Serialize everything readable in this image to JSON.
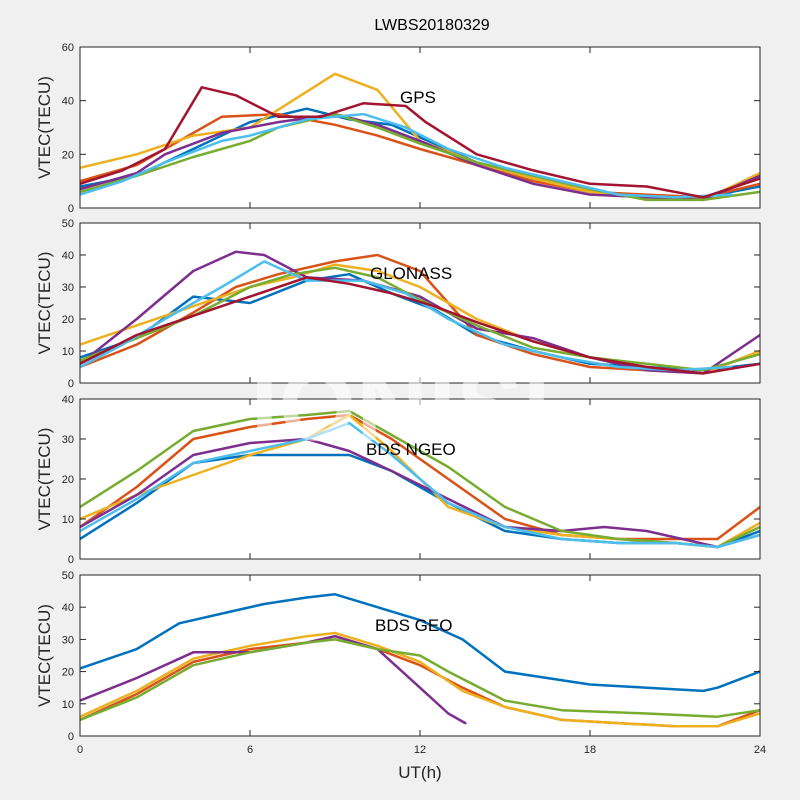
{
  "figure": {
    "title": "LWBS20180329",
    "xlabel": "UT(h)",
    "watermark": "IONISE",
    "background": "#f0f0f0",
    "plot_background": "#ffffff"
  },
  "chart_data": [
    {
      "type": "line",
      "annotation": "GPS",
      "ylabel": "VTEC(TECU)",
      "xlim": [
        0,
        24
      ],
      "ylim": [
        0,
        60
      ],
      "xticks": [
        0,
        6,
        12,
        18,
        24
      ],
      "yticks": [
        0,
        20,
        40,
        60
      ],
      "show_xticklabels": false,
      "series": [
        {
          "color": "#0072bd",
          "x": [
            0,
            2,
            4,
            6,
            8,
            9.5,
            11,
            12.5,
            14,
            16,
            18,
            20,
            22,
            24
          ],
          "y": [
            8,
            12,
            22,
            32,
            37,
            33,
            31,
            24,
            17,
            11,
            6,
            4,
            4,
            8
          ]
        },
        {
          "color": "#d95319",
          "x": [
            0,
            2,
            3.5,
            5,
            7,
            9,
            10.5,
            12,
            14,
            16,
            18,
            20,
            22,
            24
          ],
          "y": [
            10,
            16,
            25,
            34,
            35,
            31,
            27,
            22,
            16,
            10,
            6,
            5,
            4,
            9
          ]
        },
        {
          "color": "#edb120",
          "x": [
            0,
            2,
            4,
            6,
            7.5,
            9,
            10.5,
            12,
            14,
            16,
            18,
            20,
            22,
            24
          ],
          "y": [
            15,
            20,
            27,
            30,
            40,
            50,
            44,
            25,
            17,
            11,
            6,
            4,
            3,
            13
          ]
        },
        {
          "color": "#7e2f8e",
          "x": [
            0,
            2,
            3,
            5,
            7,
            9,
            10.5,
            12,
            14,
            16,
            18,
            20,
            22,
            24
          ],
          "y": [
            7,
            13,
            20,
            28,
            32,
            35,
            31,
            25,
            16,
            9,
            5,
            4,
            3,
            12
          ]
        },
        {
          "color": "#77ac30",
          "x": [
            0,
            2,
            4,
            6,
            7,
            9,
            10.5,
            12,
            14,
            16,
            18,
            20,
            22,
            24
          ],
          "y": [
            6,
            12,
            19,
            25,
            30,
            35,
            30,
            24,
            17,
            12,
            7,
            3,
            3,
            6
          ]
        },
        {
          "color": "#4dbeee",
          "x": [
            0,
            1.5,
            3,
            5,
            6,
            8,
            10,
            11.5,
            13,
            15,
            17,
            19,
            21,
            23
          ],
          "y": [
            5,
            10,
            17,
            25,
            27,
            33,
            35,
            30,
            22,
            15,
            10,
            5,
            4,
            5
          ]
        },
        {
          "color": "#a2142f",
          "x": [
            0,
            1.5,
            3,
            4.3,
            5.5,
            7,
            8.5,
            10,
            11.5,
            12.2,
            14,
            16,
            18,
            20,
            22,
            24
          ],
          "y": [
            9,
            14,
            22,
            45,
            42,
            34,
            34,
            39,
            38,
            32,
            20,
            14,
            9,
            8,
            4,
            11
          ]
        }
      ]
    },
    {
      "type": "line",
      "annotation": "GLONASS",
      "ylabel": "VTEC(TECU)",
      "xlim": [
        0,
        24
      ],
      "ylim": [
        0,
        50
      ],
      "xticks": [
        0,
        6,
        12,
        18,
        24
      ],
      "yticks": [
        0,
        10,
        20,
        30,
        40,
        50
      ],
      "show_xticklabels": false,
      "series": [
        {
          "color": "#0072bd",
          "x": [
            0,
            2,
            4,
            6,
            8,
            9.5,
            11,
            12.5,
            14,
            16,
            18,
            20,
            22,
            24
          ],
          "y": [
            8,
            14,
            27,
            25,
            32,
            34,
            28,
            23,
            15,
            10,
            6,
            5,
            4,
            6
          ]
        },
        {
          "color": "#d95319",
          "x": [
            0,
            2,
            4,
            5.5,
            7,
            9,
            10.5,
            12,
            14,
            16,
            18,
            20,
            22,
            24
          ],
          "y": [
            5,
            12,
            22,
            30,
            34,
            38,
            40,
            35,
            15,
            9,
            5,
            4,
            3,
            10
          ]
        },
        {
          "color": "#edb120",
          "x": [
            0,
            2,
            4,
            6,
            7.5,
            9,
            10.5,
            12,
            14,
            16,
            18,
            20,
            22,
            24
          ],
          "y": [
            12,
            18,
            24,
            30,
            33,
            37,
            35,
            30,
            20,
            13,
            8,
            5,
            3,
            10
          ]
        },
        {
          "color": "#7e2f8e",
          "x": [
            0,
            2,
            4,
            5.5,
            6.5,
            8,
            10,
            12,
            14,
            16,
            18,
            20,
            22,
            24
          ],
          "y": [
            6,
            20,
            35,
            41,
            40,
            33,
            32,
            27,
            17,
            14,
            8,
            4,
            3,
            15
          ]
        },
        {
          "color": "#77ac30",
          "x": [
            0,
            2,
            4,
            6,
            7.5,
            9,
            10.5,
            12,
            14,
            16,
            18,
            20,
            22,
            24
          ],
          "y": [
            7,
            14,
            21,
            30,
            34,
            36,
            33,
            26,
            18,
            11,
            8,
            6,
            4,
            9
          ]
        },
        {
          "color": "#4dbeee",
          "x": [
            0,
            1.5,
            3,
            5,
            6.5,
            8,
            10,
            11.5,
            13,
            15,
            17,
            19,
            21,
            23
          ],
          "y": [
            5,
            12,
            20,
            30,
            38,
            32,
            32,
            28,
            20,
            12,
            8,
            5,
            4,
            5
          ]
        },
        {
          "color": "#a2142f",
          "x": [
            0,
            2,
            4,
            6,
            8,
            9.5,
            11,
            12.5,
            14,
            16,
            18,
            20,
            22,
            24
          ],
          "y": [
            6,
            15,
            21,
            27,
            33,
            31,
            28,
            24,
            19,
            13,
            8,
            5,
            3,
            6
          ]
        }
      ]
    },
    {
      "type": "line",
      "annotation": "BDS NGEO",
      "ylabel": "VTEC(TECU)",
      "xlim": [
        0,
        24
      ],
      "ylim": [
        0,
        40
      ],
      "xticks": [
        0,
        6,
        12,
        18,
        24
      ],
      "yticks": [
        0,
        10,
        20,
        30,
        40
      ],
      "show_xticklabels": false,
      "series": [
        {
          "color": "#0072bd",
          "x": [
            0,
            2,
            4,
            6,
            8,
            9.5,
            11,
            13,
            15,
            17,
            19,
            21,
            22.5,
            24
          ],
          "y": [
            5,
            14,
            24,
            26,
            26,
            26,
            22,
            14,
            7,
            5,
            4,
            4,
            3,
            7
          ]
        },
        {
          "color": "#d95319",
          "x": [
            0,
            2,
            4,
            6,
            8,
            9.5,
            11,
            13,
            15,
            17,
            19,
            21,
            22.5,
            24
          ],
          "y": [
            8,
            18,
            30,
            33,
            35,
            36,
            30,
            20,
            10,
            6,
            5,
            5,
            5,
            13
          ]
        },
        {
          "color": "#edb120",
          "x": [
            0,
            2,
            4,
            6,
            8,
            9.5,
            11,
            13,
            15,
            17,
            19,
            21,
            22.5,
            24
          ],
          "y": [
            10,
            16,
            21,
            26,
            30,
            36,
            27,
            13,
            8,
            6,
            5,
            4,
            3,
            9
          ]
        },
        {
          "color": "#7e2f8e",
          "x": [
            0,
            2,
            4,
            6,
            8,
            9.5,
            11,
            13,
            15,
            17,
            18.5,
            20,
            22.5,
            24
          ],
          "y": [
            8,
            16,
            26,
            29,
            30,
            27,
            22,
            15,
            8,
            7,
            8,
            7,
            3,
            6
          ]
        },
        {
          "color": "#77ac30",
          "x": [
            0,
            2,
            4,
            6,
            8,
            9.5,
            11,
            13,
            15,
            17,
            19,
            21,
            22.5,
            24
          ],
          "y": [
            13,
            22,
            32,
            35,
            36,
            37,
            31,
            23,
            13,
            7,
            5,
            4,
            3,
            8
          ]
        },
        {
          "color": "#4dbeee",
          "x": [
            0,
            2,
            4,
            6,
            8,
            9.5,
            11,
            13,
            15,
            17,
            19,
            21,
            22.5,
            24
          ],
          "y": [
            7,
            15,
            24,
            27,
            30,
            34,
            26,
            14,
            8,
            5,
            4,
            4,
            3,
            6
          ]
        }
      ]
    },
    {
      "type": "line",
      "annotation": "BDS GEO",
      "ylabel": "VTEC(TECU)",
      "xlim": [
        0,
        24
      ],
      "ylim": [
        0,
        50
      ],
      "xticks": [
        0,
        6,
        12,
        18,
        24
      ],
      "yticks": [
        0,
        10,
        20,
        30,
        40,
        50
      ],
      "show_xticklabels": true,
      "series": [
        {
          "color": "#0072bd",
          "x": [
            0,
            2,
            3.5,
            5,
            6.5,
            8,
            9,
            10.5,
            12,
            13.5,
            15,
            18,
            20,
            22,
            22.5,
            24
          ],
          "y": [
            21,
            27,
            35,
            38,
            41,
            43,
            44,
            40,
            36,
            30,
            20,
            16,
            15,
            14,
            15,
            20
          ]
        },
        {
          "color": "#d95319",
          "x": [
            0,
            2,
            4,
            6,
            8,
            9,
            10.5,
            12,
            13.5,
            15,
            17,
            19,
            21,
            22.5,
            24
          ],
          "y": [
            5,
            13,
            23,
            27,
            29,
            31,
            27,
            22,
            15,
            9,
            5,
            4,
            3,
            3,
            8
          ]
        },
        {
          "color": "#edb120",
          "x": [
            0,
            2,
            4,
            6,
            8,
            9,
            10.5,
            12,
            13.5,
            15,
            17,
            19,
            21,
            22.5,
            24
          ],
          "y": [
            6,
            14,
            24,
            28,
            31,
            32,
            28,
            23,
            14,
            9,
            5,
            4,
            3,
            3,
            7
          ]
        },
        {
          "color": "#7e2f8e",
          "x": [
            0,
            2,
            4,
            6,
            8,
            9,
            10.5,
            12,
            13,
            13.6
          ],
          "y": [
            11,
            18,
            26,
            26,
            29,
            31,
            27,
            15,
            7,
            4
          ]
        },
        {
          "color": "#77ac30",
          "x": [
            0,
            2,
            4,
            6,
            8,
            9,
            10.5,
            12,
            13,
            15,
            17,
            20,
            22.5,
            24
          ],
          "y": [
            5,
            12,
            22,
            26,
            29,
            30,
            27,
            25,
            20,
            11,
            8,
            7,
            6,
            8
          ]
        }
      ]
    }
  ]
}
